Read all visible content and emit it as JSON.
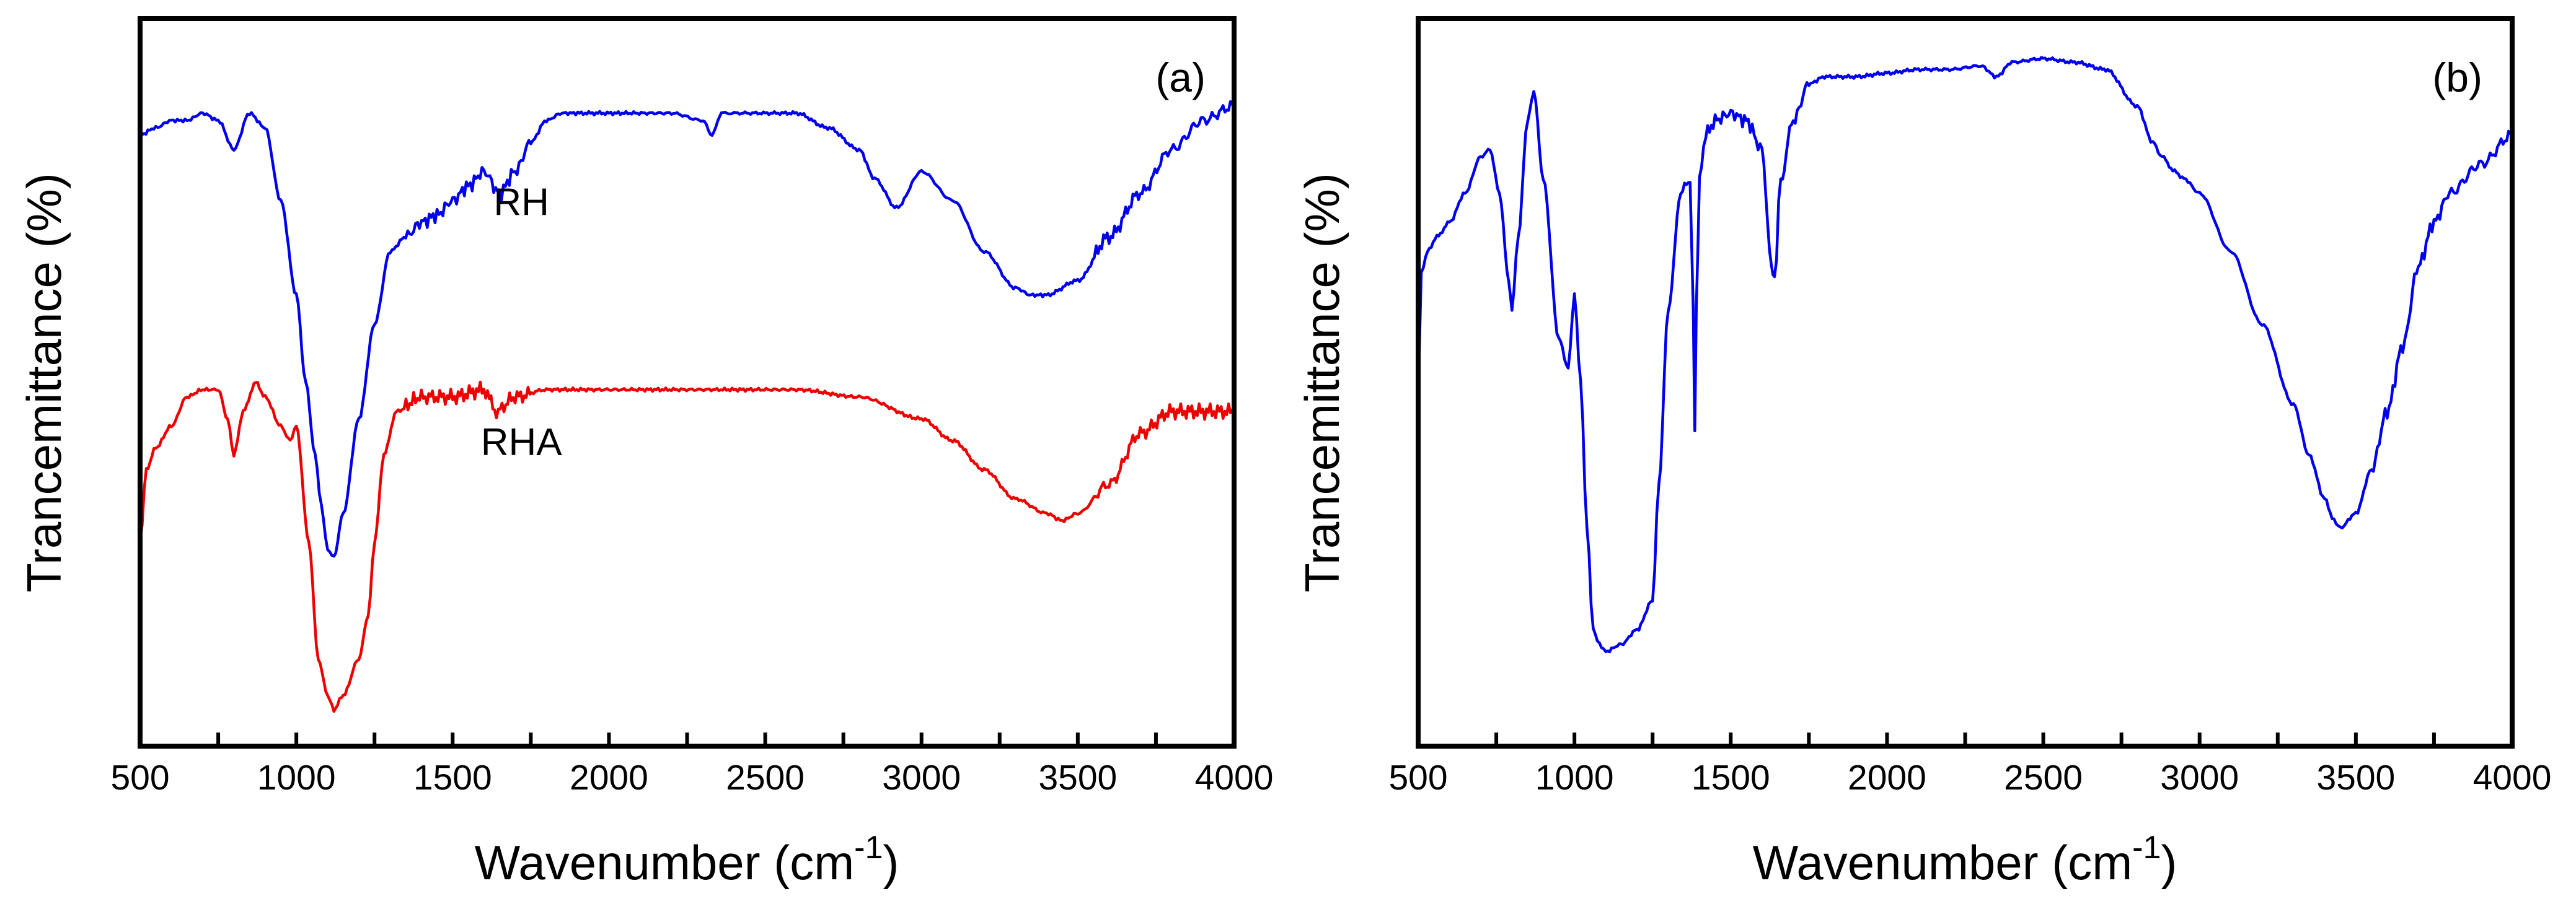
{
  "chart_data": [
    {
      "type": "line",
      "panel_label": "(a)",
      "xlabel": "Wavenumber (cm",
      "xlabel_sup": "-1",
      "xlabel_close": ")",
      "ylabel": "Trancemittance (%)",
      "xlim": [
        500,
        4000
      ],
      "ylim": [
        0,
        100
      ],
      "y_ticks_shown": false,
      "grid": false,
      "x_ticks": [
        500,
        1000,
        1500,
        2000,
        2500,
        3000,
        3500,
        4000
      ],
      "x_tick_labels": [
        "500",
        "1000",
        "1500",
        "2000",
        "2500",
        "3000",
        "3500",
        "4000"
      ],
      "series": [
        {
          "name": "RH",
          "color": "#0000ee",
          "label_at": [
            1720,
            73
          ],
          "x": [
            500,
            550,
            600,
            650,
            700,
            750,
            800,
            850,
            900,
            950,
            1000,
            1030,
            1060,
            1080,
            1100,
            1120,
            1150,
            1200,
            1250,
            1300,
            1350,
            1400,
            1450,
            1500,
            1550,
            1600,
            1650,
            1700,
            1750,
            1800,
            1850,
            1900,
            2000,
            2200,
            2300,
            2330,
            2360,
            2400,
            2500,
            2600,
            2700,
            2800,
            2850,
            2920,
            3000,
            3100,
            3200,
            3300,
            3350,
            3400,
            3500,
            3600,
            3700,
            3800,
            3900,
            4000
          ],
          "values": [
            84,
            85,
            86,
            86,
            87,
            86,
            82,
            87,
            85,
            75,
            62,
            50,
            40,
            33,
            27,
            26,
            32,
            45,
            58,
            68,
            70,
            72,
            73,
            75,
            77,
            79,
            76,
            79,
            83,
            86,
            87,
            87,
            87,
            87,
            86,
            84,
            87,
            87,
            87,
            87,
            85,
            82,
            78,
            74,
            79,
            75,
            68,
            63,
            62,
            62,
            64,
            70,
            76,
            82,
            86,
            88
          ]
        },
        {
          "name": "RHA",
          "color": "#ee0000",
          "label_at": [
            1720,
            40
          ],
          "x": [
            500,
            520,
            550,
            600,
            650,
            700,
            750,
            780,
            800,
            830,
            870,
            900,
            950,
            980,
            1000,
            1040,
            1070,
            1100,
            1120,
            1150,
            1200,
            1230,
            1250,
            1280,
            1320,
            1400,
            1500,
            1600,
            1640,
            1700,
            1800,
            2000,
            2200,
            2400,
            2600,
            2800,
            3000,
            3100,
            3200,
            3300,
            3400,
            3450,
            3500,
            3600,
            3700,
            3800,
            3900,
            4000
          ],
          "values": [
            28,
            38,
            41,
            44,
            48,
            49,
            49,
            45,
            40,
            46,
            50,
            48,
            44,
            42,
            44,
            28,
            12,
            7,
            5,
            7,
            12,
            18,
            28,
            40,
            46,
            48,
            48,
            49,
            46,
            48,
            49,
            49,
            49,
            49,
            49,
            48,
            45,
            42,
            38,
            34,
            32,
            31,
            32,
            36,
            43,
            46,
            46,
            46
          ]
        }
      ]
    },
    {
      "type": "line",
      "panel_label": "(b)",
      "xlabel": "Wavenumber (cm",
      "xlabel_sup": "-1",
      "xlabel_close": ")",
      "ylabel": "Trancemittance (%)",
      "xlim": [
        500,
        4000
      ],
      "ylim": [
        0,
        100
      ],
      "y_ticks_shown": false,
      "grid": false,
      "x_ticks": [
        500,
        1000,
        1500,
        2000,
        2500,
        3000,
        3500,
        4000
      ],
      "x_tick_labels": [
        "500",
        "1000",
        "1500",
        "2000",
        "2500",
        "3000",
        "3500",
        "4000"
      ],
      "series": [
        {
          "name": "",
          "color": "#0000ee",
          "x": [
            500,
            510,
            530,
            560,
            600,
            650,
            700,
            730,
            760,
            790,
            800,
            820,
            850,
            870,
            900,
            950,
            980,
            1000,
            1020,
            1040,
            1060,
            1080,
            1100,
            1150,
            1200,
            1250,
            1270,
            1300,
            1340,
            1370,
            1380,
            1385,
            1390,
            1400,
            1420,
            1450,
            1500,
            1550,
            1600,
            1630,
            1640,
            1660,
            1700,
            1750,
            1800,
            1900,
            2000,
            2100,
            2200,
            2300,
            2350,
            2400,
            2500,
            2600,
            2700,
            2800,
            2850,
            2880,
            2920,
            2950,
            3000,
            3100,
            3200,
            3300,
            3350,
            3400,
            3430,
            3450,
            3500,
            3550,
            3600,
            3650,
            3700,
            3750,
            3800,
            3900,
            4000
          ],
          "values": [
            48,
            65,
            68,
            70,
            72,
            76,
            81,
            82,
            76,
            64,
            60,
            70,
            86,
            90,
            78,
            56,
            52,
            62,
            50,
            30,
            16,
            14,
            13,
            14,
            16,
            20,
            36,
            60,
            76,
            78,
            60,
            44,
            60,
            78,
            84,
            86,
            87,
            86,
            82,
            66,
            64,
            78,
            86,
            91,
            92,
            92,
            92.5,
            93,
            93,
            93.5,
            92,
            94,
            94.5,
            94,
            93,
            88,
            83,
            81,
            79,
            78,
            76,
            68,
            58,
            47,
            40,
            34,
            31,
            30,
            32,
            38,
            46,
            55,
            66,
            72,
            76,
            80,
            84
          ]
        }
      ]
    }
  ]
}
